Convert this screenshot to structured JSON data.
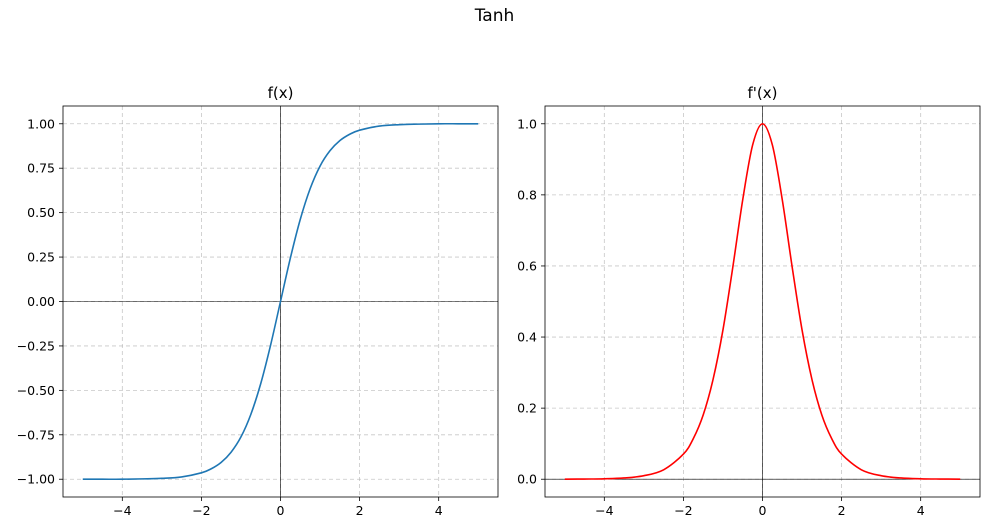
{
  "figure": {
    "suptitle": "Tanh"
  },
  "chart_data": [
    {
      "type": "line",
      "title": "f(x)",
      "xlabel": "",
      "ylabel": "",
      "xlim": [
        -5.5,
        5.5
      ],
      "ylim": [
        -1.1,
        1.1
      ],
      "xticks": [
        -4,
        -2,
        0,
        2,
        4
      ],
      "xtick_labels": [
        "−4",
        "−2",
        "0",
        "2",
        "4"
      ],
      "yticks": [
        -1.0,
        -0.75,
        -0.5,
        -0.25,
        0.0,
        0.25,
        0.5,
        0.75,
        1.0
      ],
      "ytick_labels": [
        "−1.00",
        "−0.75",
        "−0.50",
        "−0.25",
        "0.00",
        "0.25",
        "0.50",
        "0.75",
        "1.00"
      ],
      "grid": true,
      "axis_lines_at_zero": true,
      "series": [
        {
          "color": "#1f77b4",
          "x": [
            -5.0,
            -4.5,
            -4.0,
            -3.5,
            -3.0,
            -2.5,
            -2.0,
            -1.75,
            -1.5,
            -1.25,
            -1.0,
            -0.75,
            -0.5,
            -0.25,
            0.0,
            0.25,
            0.5,
            0.75,
            1.0,
            1.25,
            1.5,
            1.75,
            2.0,
            2.5,
            3.0,
            3.5,
            4.0,
            4.5,
            5.0
          ],
          "y": [
            -1.0,
            -1.0,
            -1.0,
            -0.998,
            -0.995,
            -0.987,
            -0.964,
            -0.941,
            -0.905,
            -0.848,
            -0.762,
            -0.635,
            -0.462,
            -0.245,
            0.0,
            0.245,
            0.462,
            0.635,
            0.762,
            0.848,
            0.905,
            0.941,
            0.964,
            0.987,
            0.995,
            0.998,
            1.0,
            1.0,
            1.0
          ]
        }
      ]
    },
    {
      "type": "line",
      "title": "f'(x)",
      "xlabel": "",
      "ylabel": "",
      "xlim": [
        -5.5,
        5.5
      ],
      "ylim": [
        -0.05,
        1.05
      ],
      "xticks": [
        -4,
        -2,
        0,
        2,
        4
      ],
      "xtick_labels": [
        "−4",
        "−2",
        "0",
        "2",
        "4"
      ],
      "yticks": [
        0.0,
        0.2,
        0.4,
        0.6,
        0.8,
        1.0
      ],
      "ytick_labels": [
        "0.0",
        "0.2",
        "0.4",
        "0.6",
        "0.8",
        "1.0"
      ],
      "grid": true,
      "axis_lines_at_zero": true,
      "series": [
        {
          "color": "#ff0000",
          "x": [
            -5.0,
            -4.5,
            -4.0,
            -3.5,
            -3.0,
            -2.5,
            -2.0,
            -1.75,
            -1.5,
            -1.25,
            -1.0,
            -0.75,
            -0.5,
            -0.25,
            0.0,
            0.25,
            0.5,
            0.75,
            1.0,
            1.25,
            1.5,
            1.75,
            2.0,
            2.5,
            3.0,
            3.5,
            4.0,
            4.5,
            5.0
          ],
          "y": [
            0.0002,
            0.0005,
            0.0013,
            0.0036,
            0.0099,
            0.0266,
            0.0707,
            0.1142,
            0.1807,
            0.2809,
            0.42,
            0.5972,
            0.7864,
            0.94,
            1.0,
            0.94,
            0.7864,
            0.5972,
            0.42,
            0.2809,
            0.1807,
            0.1142,
            0.0707,
            0.0266,
            0.0099,
            0.0036,
            0.0013,
            0.0005,
            0.0002
          ]
        }
      ]
    }
  ]
}
